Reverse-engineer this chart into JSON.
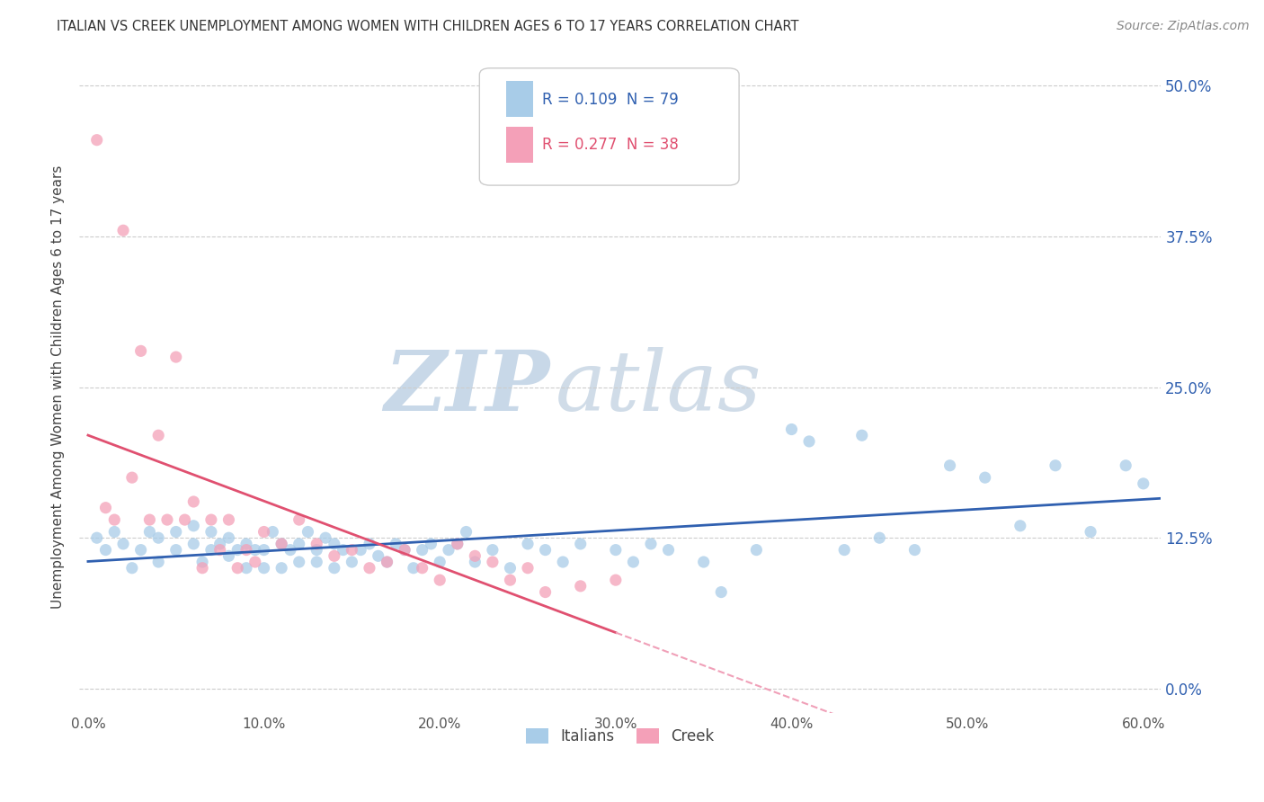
{
  "title": "ITALIAN VS CREEK UNEMPLOYMENT AMONG WOMEN WITH CHILDREN AGES 6 TO 17 YEARS CORRELATION CHART",
  "source": "Source: ZipAtlas.com",
  "ylabel": "Unemployment Among Women with Children Ages 6 to 17 years",
  "xlabel_ticks": [
    "0.0%",
    "10.0%",
    "20.0%",
    "30.0%",
    "40.0%",
    "50.0%",
    "60.0%"
  ],
  "xlabel_vals": [
    0.0,
    0.1,
    0.2,
    0.3,
    0.4,
    0.5,
    0.6
  ],
  "ylabel_ticks": [
    "0.0%",
    "12.5%",
    "25.0%",
    "37.5%",
    "50.0%"
  ],
  "ylabel_vals": [
    0.0,
    0.125,
    0.25,
    0.375,
    0.5
  ],
  "xlim": [
    -0.005,
    0.61
  ],
  "ylim": [
    -0.02,
    0.52
  ],
  "italian_color": "#a8cce8",
  "creek_color": "#f4a0b8",
  "italian_line_color": "#3060b0",
  "creek_line_color": "#e05070",
  "creek_dash_color": "#f0a0b8",
  "italian_R": 0.109,
  "italian_N": 79,
  "creek_R": 0.277,
  "creek_N": 38,
  "legend_label_italian": "Italians",
  "legend_label_creek": "Creek",
  "watermark_zip": "ZIP",
  "watermark_atlas": "atlas",
  "italian_scatter_x": [
    0.005,
    0.01,
    0.015,
    0.02,
    0.025,
    0.03,
    0.035,
    0.04,
    0.04,
    0.05,
    0.05,
    0.06,
    0.06,
    0.065,
    0.07,
    0.07,
    0.075,
    0.08,
    0.08,
    0.085,
    0.09,
    0.09,
    0.095,
    0.1,
    0.1,
    0.105,
    0.11,
    0.11,
    0.115,
    0.12,
    0.12,
    0.125,
    0.13,
    0.13,
    0.135,
    0.14,
    0.14,
    0.145,
    0.15,
    0.155,
    0.16,
    0.165,
    0.17,
    0.175,
    0.18,
    0.185,
    0.19,
    0.195,
    0.2,
    0.205,
    0.21,
    0.215,
    0.22,
    0.23,
    0.24,
    0.25,
    0.26,
    0.27,
    0.28,
    0.3,
    0.31,
    0.32,
    0.33,
    0.35,
    0.36,
    0.38,
    0.4,
    0.41,
    0.43,
    0.44,
    0.45,
    0.47,
    0.49,
    0.51,
    0.53,
    0.55,
    0.57,
    0.59,
    0.6
  ],
  "italian_scatter_y": [
    0.125,
    0.115,
    0.13,
    0.12,
    0.1,
    0.115,
    0.13,
    0.125,
    0.105,
    0.13,
    0.115,
    0.12,
    0.135,
    0.105,
    0.115,
    0.13,
    0.12,
    0.11,
    0.125,
    0.115,
    0.1,
    0.12,
    0.115,
    0.1,
    0.115,
    0.13,
    0.1,
    0.12,
    0.115,
    0.105,
    0.12,
    0.13,
    0.105,
    0.115,
    0.125,
    0.1,
    0.12,
    0.115,
    0.105,
    0.115,
    0.12,
    0.11,
    0.105,
    0.12,
    0.115,
    0.1,
    0.115,
    0.12,
    0.105,
    0.115,
    0.12,
    0.13,
    0.105,
    0.115,
    0.1,
    0.12,
    0.115,
    0.105,
    0.12,
    0.115,
    0.105,
    0.12,
    0.115,
    0.105,
    0.08,
    0.115,
    0.215,
    0.205,
    0.115,
    0.21,
    0.125,
    0.115,
    0.185,
    0.175,
    0.135,
    0.185,
    0.13,
    0.185,
    0.17
  ],
  "creek_scatter_x": [
    0.005,
    0.01,
    0.015,
    0.02,
    0.025,
    0.03,
    0.035,
    0.04,
    0.045,
    0.05,
    0.055,
    0.06,
    0.065,
    0.07,
    0.075,
    0.08,
    0.085,
    0.09,
    0.095,
    0.1,
    0.11,
    0.12,
    0.13,
    0.14,
    0.15,
    0.16,
    0.17,
    0.18,
    0.19,
    0.2,
    0.21,
    0.22,
    0.23,
    0.24,
    0.25,
    0.26,
    0.28,
    0.3
  ],
  "creek_scatter_y": [
    0.455,
    0.15,
    0.14,
    0.38,
    0.175,
    0.28,
    0.14,
    0.21,
    0.14,
    0.275,
    0.14,
    0.155,
    0.1,
    0.14,
    0.115,
    0.14,
    0.1,
    0.115,
    0.105,
    0.13,
    0.12,
    0.14,
    0.12,
    0.11,
    0.115,
    0.1,
    0.105,
    0.115,
    0.1,
    0.09,
    0.12,
    0.11,
    0.105,
    0.09,
    0.1,
    0.08,
    0.085,
    0.09
  ]
}
